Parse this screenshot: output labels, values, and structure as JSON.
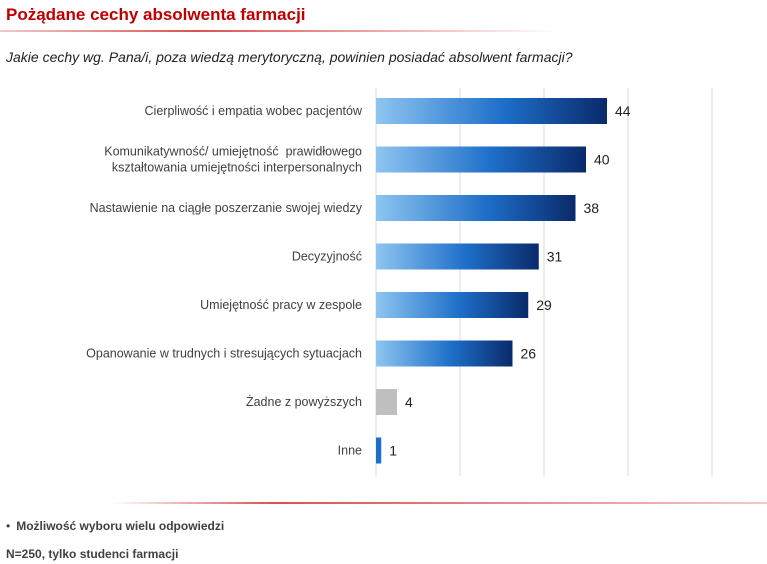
{
  "title": "Pożądane cechy absolwenta farmacji",
  "subtitle": "Jakie cechy wg. Pana/i, poza wiedzą merytoryczną, powinien posiadać absolwent farmacji?",
  "footnote": "Możliwość wyboru wielu odpowiedzi",
  "footnote_bullet": "•",
  "sample": "N=250, tylko studenci farmacji",
  "colors": {
    "title": "#c00000",
    "bar_start": "#8ec5f1",
    "bar_mid": "#1e6fc9",
    "bar_end": "#0a2a6b",
    "bar_none": "#bfbfbf",
    "grid": "#d9d9d9",
    "rule": "#d9534f"
  },
  "chart_data": {
    "type": "bar",
    "orientation": "horizontal",
    "categories": [
      [
        "Cierpliwość i empatia wobec pacjentów"
      ],
      [
        "Komunikatywność/ umiejętność  prawidłowego",
        "kształtowania umiejętności interpersonalnych"
      ],
      [
        "Nastawienie na ciągłe poszerzanie swojej wiedzy"
      ],
      [
        "Decyzyjność"
      ],
      [
        "Umiejętność pracy w zespole"
      ],
      [
        "Opanowanie w trudnych i stresujących sytuacjach"
      ],
      [
        "Żadne z powyższych"
      ],
      [
        "Inne"
      ]
    ],
    "values": [
      44,
      40,
      38,
      31,
      29,
      26,
      4,
      1
    ],
    "value_labels": [
      "44",
      "40",
      "38",
      "31",
      "29",
      "26",
      "4",
      "1"
    ],
    "bar_styles": [
      "gradient",
      "gradient",
      "gradient",
      "gradient",
      "gradient",
      "gradient",
      "grey",
      "gradient"
    ],
    "xlim": [
      0,
      80
    ],
    "grid": true,
    "legend": "none"
  }
}
